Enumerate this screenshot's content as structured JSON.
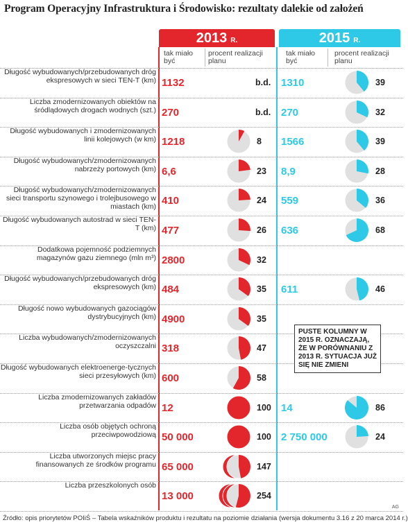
{
  "title": "Program Operacyjny Infrastruktura i Środowisko: rezultaty dalekie od założeń",
  "year_2013": "2013",
  "year_2015": "2015",
  "year_suffix": "R.",
  "col_plan_2013": "tak miało być",
  "col_pct_2013": "procent realizacji planu",
  "col_plan_2015": "tak miało być",
  "col_pct_2015": "procent realizacji planu",
  "note": "PUSTE KOLUMNY W 2015 R. OZNACZAJĄ, ŻE W PORÓWNANIU Z 2013 R. SYTUACJA JUŻ SIĘ NIE ZMIENI",
  "source": "Źródło: opis priorytetów POIiŚ – Tabela wskaźników produktu i rezultatu na poziomie działania (wersja dokumentu 3.16 z 20 marca 2014 r.)",
  "credit": "AG",
  "colors": {
    "red": "#e3262c",
    "cyan": "#2ec9e6",
    "grey": "#e0e0e0"
  },
  "chart_data": {
    "type": "table",
    "title": "Program Operacyjny Infrastruktura i Środowisko: rezultaty dalekie od założeń",
    "columns": [
      "tak miało być (2013 R.)",
      "procent realizacji planu (2013 R.)",
      "tak miało być (2015 R.)",
      "procent realizacji planu (2015 R.)"
    ],
    "rows": [
      {
        "label": "Długość wybudowanych/przebudowanych dróg ekspresowych w sieci TEN-T (km)",
        "plan2013": "1132",
        "pct2013": "b.d.",
        "pct2013_value": null,
        "plan2015": "1310",
        "pct2015": "39",
        "pct2015_value": 39
      },
      {
        "label": "Liczba zmodernizowanych obiektów na śródlądowych drogach wodnych (szt.)",
        "plan2013": "270",
        "pct2013": "b.d.",
        "pct2013_value": null,
        "plan2015": "270",
        "pct2015": "32",
        "pct2015_value": 32
      },
      {
        "label": "Długość wybudowanych i zmodernizowanych linii kolejowych (w km)",
        "plan2013": "1218",
        "pct2013": "8",
        "pct2013_value": 8,
        "plan2015": "1566",
        "pct2015": "39",
        "pct2015_value": 39
      },
      {
        "label": "Długość wybudowanych/zmodernizowanych nabrzeży portowych (km)",
        "plan2013": "6,6",
        "pct2013": "23",
        "pct2013_value": 23,
        "plan2015": "8,9",
        "pct2015": "28",
        "pct2015_value": 28
      },
      {
        "label": "Długość wybudowanych/zmodernizowanych sieci transportu szynowego i trolejbusowego w miastach (km)",
        "plan2013": "410",
        "pct2013": "24",
        "pct2013_value": 24,
        "plan2015": "559",
        "pct2015": "36",
        "pct2015_value": 36
      },
      {
        "label": "Długość wybudowanych autostrad w sieci TEN-T (km)",
        "plan2013": "477",
        "pct2013": "26",
        "pct2013_value": 26,
        "plan2015": "636",
        "pct2015": "68",
        "pct2015_value": 68
      },
      {
        "label": "Dodatkowa pojemność podziemnych magazynów gazu ziemnego (mln m³)",
        "plan2013": "2800",
        "pct2013": "32",
        "pct2013_value": 32,
        "plan2015": "",
        "pct2015": "",
        "pct2015_value": null
      },
      {
        "label": "Długość wybudowanych/przebudowanych dróg ekspresowych (km)",
        "plan2013": "484",
        "pct2013": "35",
        "pct2013_value": 35,
        "plan2015": "611",
        "pct2015": "46",
        "pct2015_value": 46
      },
      {
        "label": "Długość nowo wybudowanych gazociągów dystrybucyjnych (km)",
        "plan2013": "4900",
        "pct2013": "35",
        "pct2013_value": 35,
        "plan2015": "",
        "pct2015": "",
        "pct2015_value": null
      },
      {
        "label": "Liczba wybudowanych/zmodernizowanych oczyszczalni",
        "plan2013": "318",
        "pct2013": "47",
        "pct2013_value": 47,
        "plan2015": "",
        "pct2015": "",
        "pct2015_value": null
      },
      {
        "label": "Długość wybudowanych elektroenerge-tycznych sieci przesyłowych (km)",
        "plan2013": "600",
        "pct2013": "58",
        "pct2013_value": 58,
        "plan2015": "",
        "pct2015": "",
        "pct2015_value": null
      },
      {
        "label": "Liczba zmodernizowanych zakładów przetwarzania odpadów",
        "plan2013": "12",
        "pct2013": "100",
        "pct2013_value": 100,
        "plan2015": "14",
        "pct2015": "86",
        "pct2015_value": 86
      },
      {
        "label": "Liczba osób objętych ochroną przeciwpowodziową",
        "plan2013": "50 000",
        "pct2013": "100",
        "pct2013_value": 100,
        "plan2015": "2 750 000",
        "pct2015": "24",
        "pct2015_value": 24
      },
      {
        "label": "Liczba utworzonych miejsc pracy finansowanych ze środków programu",
        "plan2013": "65 000",
        "pct2013": "147",
        "pct2013_value": 147,
        "plan2015": "",
        "pct2015": "",
        "pct2015_value": null
      },
      {
        "label": "Liczba przeszkolonych osób",
        "plan2013": "13 000",
        "pct2013": "254",
        "pct2013_value": 254,
        "plan2015": "",
        "pct2015": "",
        "pct2015_value": null
      }
    ]
  }
}
